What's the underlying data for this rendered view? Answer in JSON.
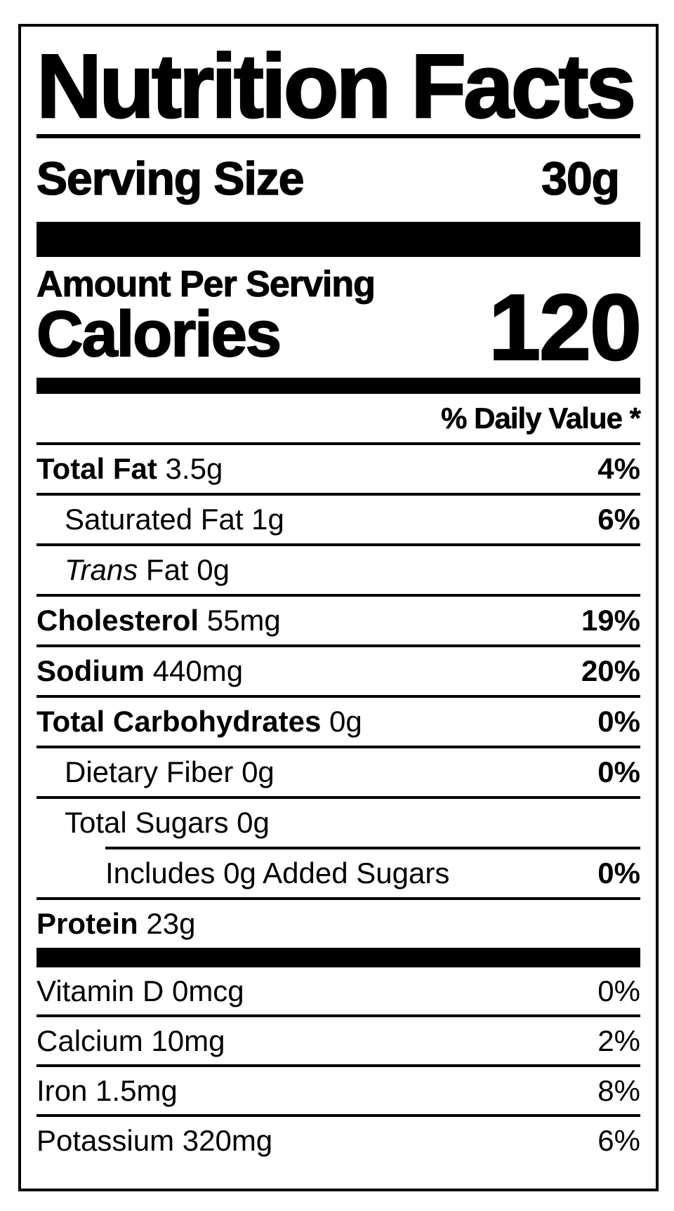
{
  "label": {
    "title": "Nutrition Facts",
    "serving_size_label": "Serving Size",
    "serving_size_value": "30g",
    "amount_per_serving_label": "Amount Per Serving",
    "calories_label": "Calories",
    "calories_value": "120",
    "daily_value_header": "% Daily Value *",
    "colors": {
      "ink": "#000000",
      "background": "#ffffff"
    },
    "nutrients": [
      {
        "name": "Total Fat",
        "amount": "3.5g",
        "dv": "4%",
        "bold_name": true,
        "bold_dv": true,
        "italic_name": false,
        "indent": 0
      },
      {
        "name": "Saturated Fat",
        "amount": "1g",
        "dv": "6%",
        "bold_name": false,
        "bold_dv": true,
        "italic_name": false,
        "indent": 1
      },
      {
        "name": "Trans",
        "name_suffix": "Fat",
        "amount": "0g",
        "dv": "",
        "bold_name": false,
        "bold_dv": false,
        "italic_name": true,
        "indent": 1
      },
      {
        "name": "Cholesterol",
        "amount": "55mg",
        "dv": "19%",
        "bold_name": true,
        "bold_dv": true,
        "italic_name": false,
        "indent": 0
      },
      {
        "name": "Sodium",
        "amount": "440mg",
        "dv": "20%",
        "bold_name": true,
        "bold_dv": true,
        "italic_name": false,
        "indent": 0
      },
      {
        "name": "Total Carbohydrates",
        "amount": "0g",
        "dv": "0%",
        "bold_name": true,
        "bold_dv": true,
        "italic_name": false,
        "indent": 0
      },
      {
        "name": "Dietary Fiber",
        "amount": "0g",
        "dv": "0%",
        "bold_name": false,
        "bold_dv": true,
        "italic_name": false,
        "indent": 1
      },
      {
        "name": "Total Sugars",
        "amount": "0g",
        "dv": "",
        "bold_name": false,
        "bold_dv": false,
        "italic_name": false,
        "indent": 1
      },
      {
        "name": "Includes 0g Added Sugars",
        "amount": "",
        "dv": "0%",
        "bold_name": false,
        "bold_dv": true,
        "italic_name": false,
        "indent": 2,
        "rule_before_indented": true
      },
      {
        "name": "Protein",
        "amount": "23g",
        "dv": "",
        "bold_name": true,
        "bold_dv": false,
        "italic_name": false,
        "indent": 0
      }
    ],
    "micronutrients": [
      {
        "name": "Vitamin D",
        "amount": "0mcg",
        "dv": "0%"
      },
      {
        "name": "Calcium",
        "amount": "10mg",
        "dv": "2%"
      },
      {
        "name": "Iron",
        "amount": "1.5mg",
        "dv": "8%"
      },
      {
        "name": "Potassium",
        "amount": "320mg",
        "dv": "6%"
      }
    ]
  }
}
